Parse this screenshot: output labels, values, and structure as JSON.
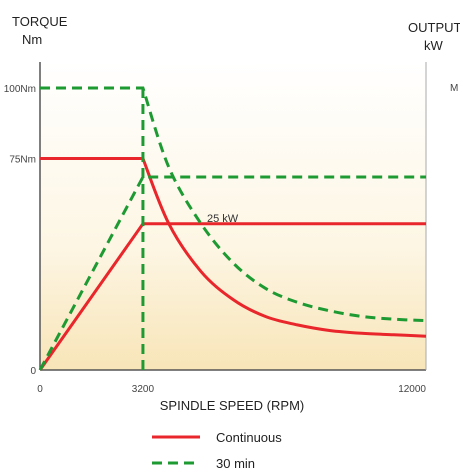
{
  "chart_data": {
    "type": "line",
    "xlabel": "SPINDLE SPEED (RPM)",
    "ylabel_left": [
      "TORQUE",
      "Nm"
    ],
    "ylabel_right": [
      "OUTPUT",
      "kW"
    ],
    "xlim": [
      0,
      12000
    ],
    "x_ticks": [
      {
        "value": 0,
        "label": "0"
      },
      {
        "value": 3200,
        "label": "3200"
      },
      {
        "value": 12000,
        "label": "12000"
      }
    ],
    "y_ticks": [
      {
        "value": 0,
        "label": "0"
      },
      {
        "value": 75,
        "label": "75Nm"
      },
      {
        "value": 100,
        "label": "100Nm"
      }
    ],
    "y_ticks_right_partial": "M",
    "series": [
      {
        "name": "Continuous",
        "color": "#e8262b",
        "style": "solid",
        "torque": {
          "x": [
            0,
            3200,
            4000,
            5000,
            6000,
            7000,
            8000,
            9000,
            10000,
            11000,
            12000
          ],
          "y": [
            75,
            75,
            52,
            35,
            25,
            19,
            16,
            14,
            13,
            12.5,
            12
          ]
        },
        "power": {
          "x": [
            0,
            3200,
            12000
          ],
          "y": [
            0,
            25,
            25
          ]
        }
      },
      {
        "name": "30 min",
        "color": "#1e9a33",
        "style": "dashed",
        "torque": {
          "x": [
            0,
            3200,
            4000,
            5000,
            6000,
            7000,
            8000,
            9000,
            10000,
            11000,
            12000
          ],
          "y": [
            100,
            100,
            72,
            52,
            38,
            29,
            24,
            21,
            19,
            18,
            17.5
          ]
        },
        "power": {
          "x": [
            0,
            3200,
            12000
          ],
          "y": [
            0,
            33,
            33
          ]
        }
      }
    ],
    "annotations": [
      {
        "text": "25 kW"
      }
    ],
    "legend_position": "bottom"
  }
}
